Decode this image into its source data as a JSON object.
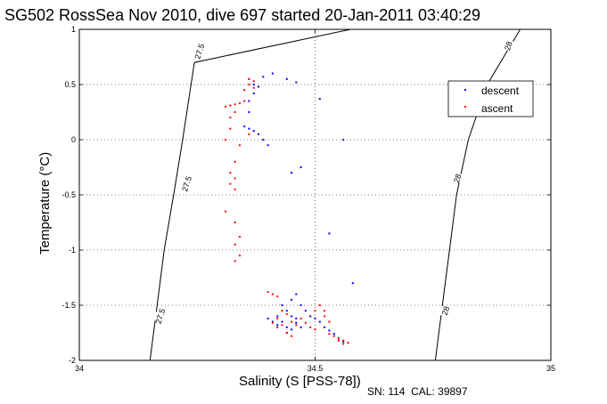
{
  "chart_data": {
    "type": "scatter",
    "title": "SG502 RossSea Nov 2010, dive 697 started 20-Jan-2011 03:40:29",
    "xlabel": "Salinity (S [PSS-78])",
    "ylabel": "Temperature (°C)",
    "xlim": [
      34,
      35
    ],
    "ylim": [
      -2,
      1
    ],
    "x_ticks": [
      "34",
      "34.5",
      "35"
    ],
    "y_ticks": [
      "1",
      "0.5",
      "0",
      "-0.5",
      "-1",
      "-1.5",
      "-2"
    ],
    "grid": true,
    "legend_position": "top-right",
    "footer": "SN: 114  CAL: 39897",
    "isopycnals": [
      {
        "label": "27.5",
        "points": [
          [
            34.575,
            1.0
          ],
          [
            34.244,
            0.7
          ],
          [
            34.219,
            0.0
          ],
          [
            34.2,
            -0.5
          ],
          [
            34.18,
            -1.0
          ],
          [
            34.165,
            -1.5
          ],
          [
            34.15,
            -2.0
          ]
        ],
        "label_positions": [
          [
            34.255,
            0.8
          ],
          [
            34.228,
            -0.4
          ],
          [
            34.172,
            -1.6
          ]
        ]
      },
      {
        "label": "28",
        "points": [
          [
            34.935,
            1.0
          ],
          [
            34.865,
            0.5
          ],
          [
            34.825,
            0.0
          ],
          [
            34.8,
            -0.5
          ],
          [
            34.785,
            -1.0
          ],
          [
            34.77,
            -1.5
          ],
          [
            34.755,
            -2.0
          ]
        ],
        "label_positions": [
          [
            34.91,
            0.85
          ],
          [
            34.802,
            -0.35
          ],
          [
            34.777,
            -1.55
          ]
        ]
      }
    ],
    "series": [
      {
        "name": "descent",
        "color": "#0000ff",
        "points": [
          [
            34.41,
            0.6
          ],
          [
            34.39,
            0.57
          ],
          [
            34.36,
            0.55
          ],
          [
            34.37,
            0.5
          ],
          [
            34.38,
            0.48
          ],
          [
            34.37,
            0.42
          ],
          [
            34.36,
            0.35
          ],
          [
            34.36,
            0.25
          ],
          [
            34.35,
            0.12
          ],
          [
            34.36,
            0.1
          ],
          [
            34.37,
            0.08
          ],
          [
            34.38,
            0.05
          ],
          [
            34.39,
            0.0
          ],
          [
            34.4,
            -0.05
          ],
          [
            34.45,
            -0.3
          ],
          [
            34.47,
            -0.25
          ],
          [
            34.44,
            0.55
          ],
          [
            34.46,
            0.52
          ],
          [
            34.51,
            0.37
          ],
          [
            34.56,
            0.0
          ],
          [
            34.53,
            -0.85
          ],
          [
            34.58,
            -1.3
          ],
          [
            34.46,
            -1.4
          ],
          [
            34.45,
            -1.45
          ],
          [
            34.47,
            -1.5
          ],
          [
            34.48,
            -1.55
          ],
          [
            34.49,
            -1.6
          ],
          [
            34.5,
            -1.62
          ],
          [
            34.51,
            -1.65
          ],
          [
            34.52,
            -1.7
          ],
          [
            34.53,
            -1.73
          ],
          [
            34.54,
            -1.76
          ],
          [
            34.55,
            -1.8
          ],
          [
            34.56,
            -1.83
          ],
          [
            34.43,
            -1.65
          ],
          [
            34.44,
            -1.7
          ],
          [
            34.45,
            -1.72
          ],
          [
            34.44,
            -1.75
          ],
          [
            34.42,
            -1.68
          ],
          [
            34.41,
            -1.65
          ],
          [
            34.4,
            -1.62
          ],
          [
            34.46,
            -1.66
          ],
          [
            34.47,
            -1.7
          ],
          [
            34.43,
            -1.5
          ],
          [
            34.44,
            -1.55
          ],
          [
            34.42,
            -1.6
          ],
          [
            34.45,
            -1.6
          ],
          [
            34.46,
            -1.62
          ]
        ]
      },
      {
        "name": "ascent",
        "color": "#ff0000",
        "points": [
          [
            34.36,
            0.55
          ],
          [
            34.37,
            0.53
          ],
          [
            34.36,
            0.5
          ],
          [
            34.37,
            0.47
          ],
          [
            34.35,
            0.45
          ],
          [
            34.35,
            0.35
          ],
          [
            34.34,
            0.33
          ],
          [
            34.33,
            0.32
          ],
          [
            34.32,
            0.31
          ],
          [
            34.31,
            0.3
          ],
          [
            34.33,
            0.25
          ],
          [
            34.32,
            0.2
          ],
          [
            34.32,
            0.1
          ],
          [
            34.31,
            0.0
          ],
          [
            34.33,
            -0.2
          ],
          [
            34.32,
            -0.3
          ],
          [
            34.33,
            -0.35
          ],
          [
            34.32,
            -0.4
          ],
          [
            34.33,
            -0.45
          ],
          [
            34.31,
            -0.65
          ],
          [
            34.33,
            -0.75
          ],
          [
            34.34,
            -0.88
          ],
          [
            34.33,
            -0.95
          ],
          [
            34.34,
            -1.05
          ],
          [
            34.33,
            -1.1
          ],
          [
            34.41,
            -1.4
          ],
          [
            34.42,
            -1.42
          ],
          [
            34.4,
            -1.38
          ],
          [
            34.43,
            -1.55
          ],
          [
            34.44,
            -1.58
          ],
          [
            34.42,
            -1.62
          ],
          [
            34.45,
            -1.65
          ],
          [
            34.46,
            -1.68
          ],
          [
            34.47,
            -1.62
          ],
          [
            34.48,
            -1.66
          ],
          [
            34.49,
            -1.7
          ],
          [
            34.5,
            -1.72
          ],
          [
            34.5,
            -1.55
          ],
          [
            34.52,
            -1.6
          ],
          [
            34.53,
            -1.65
          ],
          [
            34.54,
            -1.78
          ],
          [
            34.55,
            -1.8
          ],
          [
            34.56,
            -1.82
          ],
          [
            34.57,
            -1.84
          ],
          [
            34.44,
            -1.75
          ],
          [
            34.45,
            -1.78
          ],
          [
            34.43,
            -1.68
          ],
          [
            34.42,
            -1.7
          ],
          [
            34.41,
            -1.66
          ],
          [
            34.51,
            -1.5
          ],
          [
            34.52,
            -1.55
          ],
          [
            34.53,
            -1.76
          ],
          [
            34.55,
            -1.82
          ],
          [
            34.56,
            -1.85
          ],
          [
            34.36,
            0.05
          ],
          [
            34.34,
            -0.05
          ]
        ]
      }
    ]
  }
}
